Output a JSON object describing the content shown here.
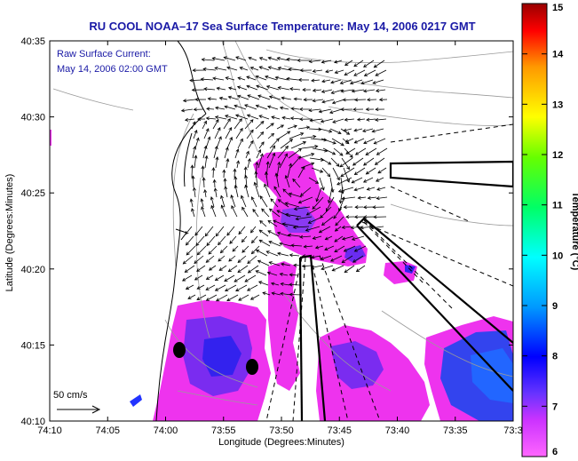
{
  "title": "RU COOL  NOAA–17  Sea Surface Temperature:  May 14, 2006 0217 GMT",
  "annotation": {
    "line1": "Raw Surface Current:",
    "line2": "May 14, 2006 02:00 GMT"
  },
  "axes": {
    "xlabel": "Longitude (Degrees:Minutes)",
    "ylabel": "Latitude (Degrees:Minutes)",
    "xticks": [
      "74:10",
      "74:05",
      "74:00",
      "73:55",
      "73:50",
      "73:45",
      "73:40",
      "73:35",
      "73:3"
    ],
    "yticks": [
      "40:35",
      "40:30",
      "40:25",
      "40:20",
      "40:15",
      "40:10"
    ]
  },
  "scale_vector_label": "50 cm/s",
  "colorbar": {
    "label": "Temperature (°C)",
    "ticks": [
      "15",
      "14",
      "13",
      "12",
      "11",
      "10",
      "9",
      "8",
      "7",
      "6"
    ],
    "range": [
      6,
      15
    ],
    "colors": [
      "#ff66ff",
      "#9933ff",
      "#0000ff",
      "#0099ff",
      "#00ffff",
      "#00ff66",
      "#66ff00",
      "#ffff00",
      "#ff9900",
      "#ff0000",
      "#990000"
    ]
  },
  "colors": {
    "title": "#1a1aa6",
    "land_outline": "#000000",
    "contours": "#9a9a9a"
  }
}
